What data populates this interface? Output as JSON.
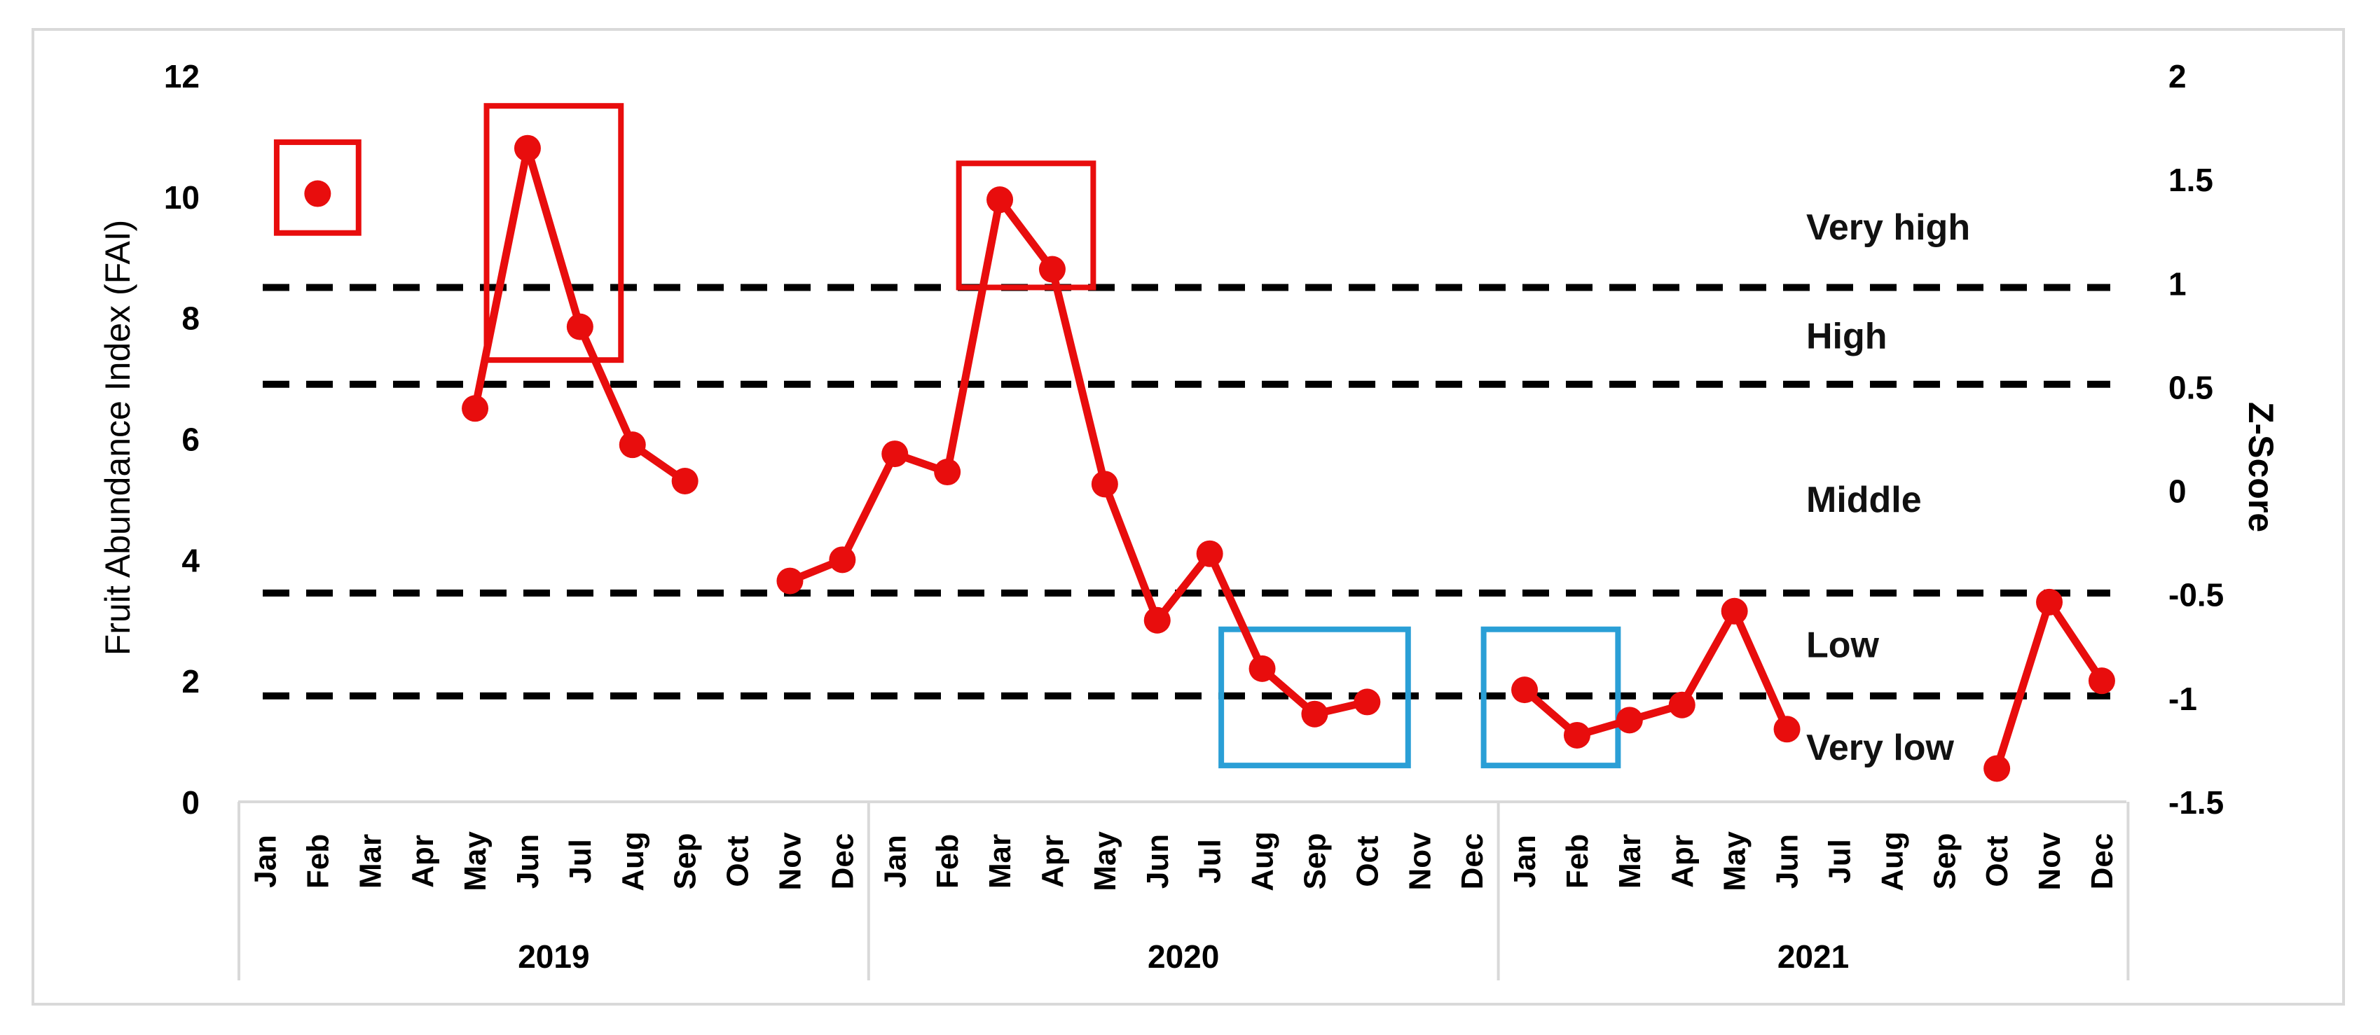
{
  "chart_data": {
    "type": "line",
    "ylabel": "Fruit Abundance Index (FAI)",
    "y2label": "Z-Score",
    "ylim": [
      0,
      12
    ],
    "y2lim": [
      -1.5,
      2
    ],
    "y_ticks": [
      "0",
      "2",
      "4",
      "6",
      "8",
      "10",
      "12"
    ],
    "y2_ticks": [
      "-1.5",
      "-1",
      "-0.5",
      "0",
      "0.5",
      "1",
      "1.5",
      "2"
    ],
    "months": [
      "Jan",
      "Feb",
      "Mar",
      "Apr",
      "May",
      "Jun",
      "Jul",
      "Aug",
      "Sep",
      "Oct",
      "Nov",
      "Dec"
    ],
    "years": [
      "2019",
      "2020",
      "2021"
    ],
    "series_color": "#e80d0d",
    "series_values": [
      null,
      10.05,
      null,
      null,
      6.5,
      10.8,
      7.85,
      5.9,
      5.3,
      null,
      3.65,
      4.0,
      5.75,
      5.45,
      9.95,
      8.8,
      5.25,
      3.0,
      4.1,
      2.2,
      1.45,
      1.65,
      null,
      null,
      1.85,
      1.1,
      1.35,
      1.6,
      3.15,
      1.2,
      null,
      null,
      null,
      0.55,
      3.3,
      2.0
    ],
    "thresholds": [
      {
        "label": "Very high",
        "y": 8.5
      },
      {
        "label": "High",
        "y": 6.9
      },
      {
        "label": "Middle",
        "y": 3.45
      },
      {
        "label": "Low",
        "y": 1.75
      },
      {
        "label": "Very low",
        "y": null
      }
    ],
    "band_label_positions": [
      {
        "label": "Very high",
        "y": 9.5
      },
      {
        "label": "High",
        "y": 7.7
      },
      {
        "label": "Middle",
        "y": 5.0
      },
      {
        "label": "Low",
        "y": 2.6
      },
      {
        "label": "Very low",
        "y": 0.9
      }
    ],
    "highlight_boxes": [
      {
        "color": "#e80d0d",
        "from": "Feb 2019",
        "to": "Feb 2019",
        "ymin": 9.4,
        "ymax": 10.9,
        "name": "box-red-feb-2019"
      },
      {
        "color": "#e80d0d",
        "from": "Jun 2019",
        "to": "Jul 2019",
        "ymin": 7.3,
        "ymax": 11.5,
        "name": "box-red-jun-jul-2019"
      },
      {
        "color": "#e80d0d",
        "from": "Mar 2020",
        "to": "Apr 2020",
        "ymin": 8.5,
        "ymax": 10.55,
        "name": "box-red-mar-apr-2020"
      },
      {
        "color": "#2a9fd6",
        "from": "Aug 2020",
        "to": "Oct 2020",
        "ymin": 0.6,
        "ymax": 2.85,
        "name": "box-blue-aug-oct-2020"
      },
      {
        "color": "#2a9fd6",
        "from": "Jan 2021",
        "to": "Feb 2021",
        "ymin": 0.6,
        "ymax": 2.85,
        "name": "box-blue-jan-feb-2021"
      }
    ]
  }
}
